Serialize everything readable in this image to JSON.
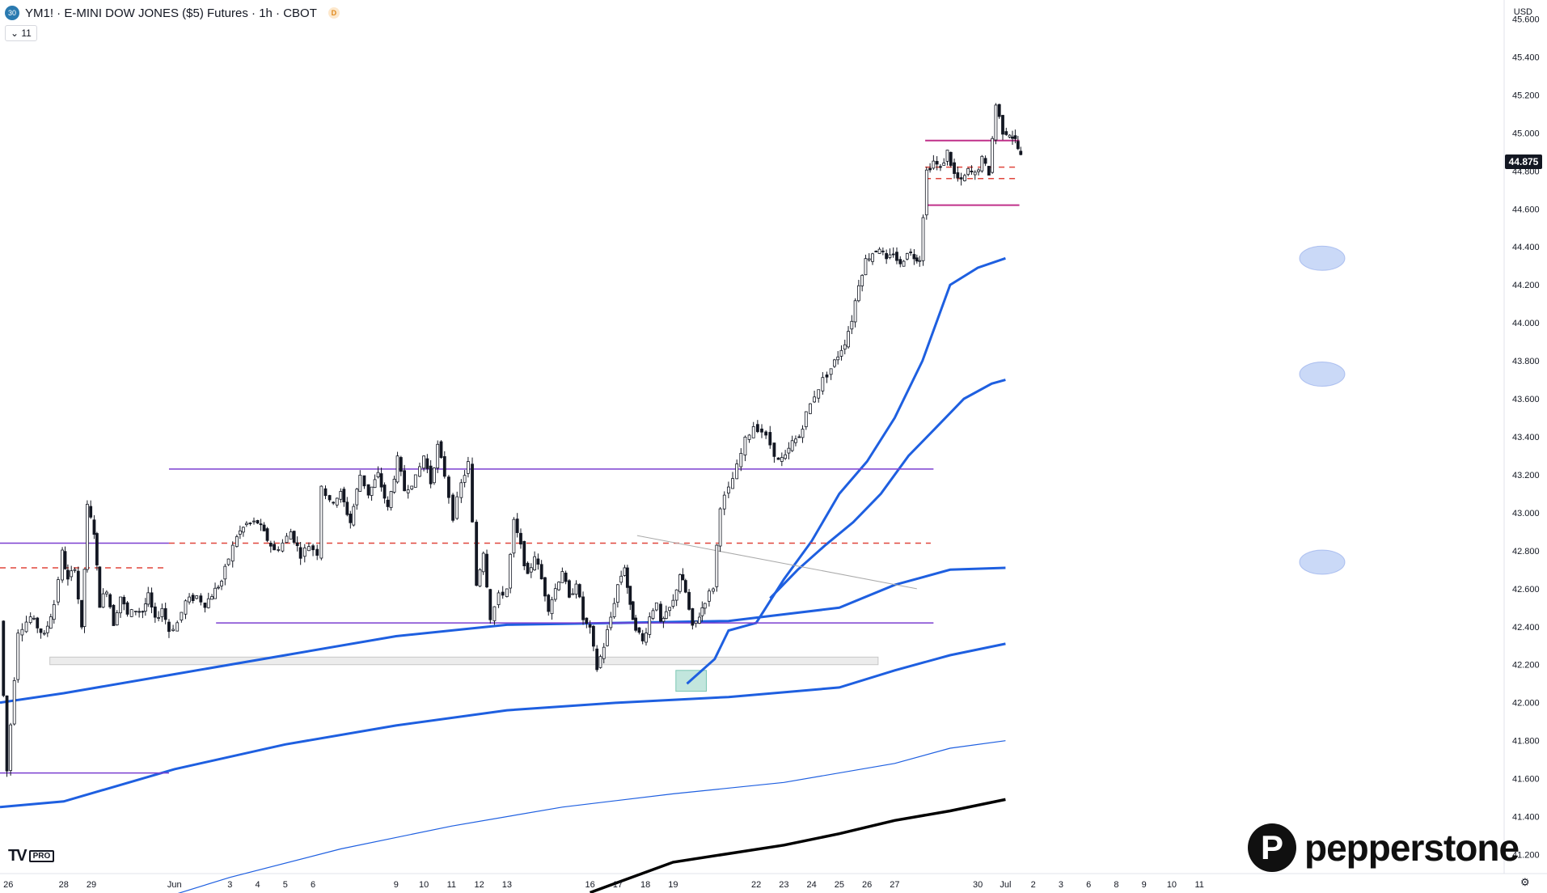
{
  "header": {
    "logo_text": "30",
    "title": "YM1! · E-MINI DOW JONES ($5) Futures · 1h · CBOT",
    "badge": "D",
    "indicator_toggle": "⌄ 11"
  },
  "currency": "USD",
  "last_price_label": "44.875",
  "branding": {
    "tv": "TV",
    "pro": "PRO",
    "broker": "pepperstone",
    "broker_mark": "P"
  },
  "settings_icon": "gear-icon",
  "colors": {
    "candle": "#131722",
    "band": "#1e5fe0",
    "resistance": "#7b3fd0",
    "dashed": "#e0463c",
    "top_range": "#c0308a",
    "sma": "#000000"
  },
  "chart_data": {
    "type": "candlestick",
    "symbol": "YM1!",
    "timeframe": "1h",
    "y_axis": {
      "min": 41100,
      "max": 45700,
      "ticks": [
        41200,
        41400,
        41600,
        41800,
        42000,
        42200,
        42400,
        42600,
        42800,
        43000,
        43200,
        43400,
        43600,
        43800,
        44000,
        44200,
        44400,
        44600,
        44800,
        45000,
        45200,
        45400,
        45600
      ],
      "tick_labels": [
        "41.200",
        "41.400",
        "41.600",
        "41.800",
        "42.000",
        "42.200",
        "42.400",
        "42.600",
        "42.800",
        "43.000",
        "43.200",
        "43.400",
        "43.600",
        "43.800",
        "44.000",
        "44.200",
        "44.400",
        "44.600",
        "44.800",
        "45.000",
        "45.200",
        "45.400",
        "45.600"
      ]
    },
    "x_axis": {
      "range": [
        25.7,
        80.0
      ],
      "ticks": [
        {
          "t": 26,
          "label": "26"
        },
        {
          "t": 28,
          "label": "28"
        },
        {
          "t": 29,
          "label": "29"
        },
        {
          "t": 32,
          "label": "Jun"
        },
        {
          "t": 34,
          "label": "3"
        },
        {
          "t": 35,
          "label": "4"
        },
        {
          "t": 36,
          "label": "5"
        },
        {
          "t": 37,
          "label": "6"
        },
        {
          "t": 40,
          "label": "9"
        },
        {
          "t": 41,
          "label": "10"
        },
        {
          "t": 42,
          "label": "11"
        },
        {
          "t": 43,
          "label": "12"
        },
        {
          "t": 44,
          "label": "13"
        },
        {
          "t": 47,
          "label": "16"
        },
        {
          "t": 48,
          "label": "17"
        },
        {
          "t": 49,
          "label": "18"
        },
        {
          "t": 50,
          "label": "19"
        },
        {
          "t": 53,
          "label": "22"
        },
        {
          "t": 54,
          "label": "23"
        },
        {
          "t": 55,
          "label": "24"
        },
        {
          "t": 56,
          "label": "25"
        },
        {
          "t": 57,
          "label": "26"
        },
        {
          "t": 58,
          "label": "27"
        },
        {
          "t": 61,
          "label": "30"
        },
        {
          "t": 62,
          "label": "Jul"
        },
        {
          "t": 63,
          "label": "2"
        },
        {
          "t": 64,
          "label": "3"
        },
        {
          "t": 65,
          "label": "6"
        },
        {
          "t": 66,
          "label": "8"
        },
        {
          "t": 67,
          "label": "9"
        },
        {
          "t": 68,
          "label": "10"
        },
        {
          "t": 69,
          "label": "11"
        }
      ]
    },
    "price_path": [
      [
        25.7,
        42430
      ],
      [
        25.95,
        41640
      ],
      [
        26.35,
        42380
      ],
      [
        26.8,
        42450
      ],
      [
        27.3,
        42350
      ],
      [
        27.65,
        42520
      ],
      [
        27.95,
        42790
      ],
      [
        28.15,
        42640
      ],
      [
        28.4,
        42720
      ],
      [
        28.65,
        42380
      ],
      [
        28.85,
        43030
      ],
      [
        29.1,
        42900
      ],
      [
        29.3,
        42520
      ],
      [
        29.55,
        42600
      ],
      [
        29.8,
        42420
      ],
      [
        30.05,
        42560
      ],
      [
        30.3,
        42460
      ],
      [
        30.6,
        42490
      ],
      [
        30.85,
        42480
      ],
      [
        31.05,
        42560
      ],
      [
        31.3,
        42430
      ],
      [
        31.55,
        42500
      ],
      [
        31.8,
        42380
      ],
      [
        32.1,
        42420
      ],
      [
        32.4,
        42530
      ],
      [
        32.8,
        42560
      ],
      [
        33.1,
        42520
      ],
      [
        33.35,
        42570
      ],
      [
        33.7,
        42640
      ],
      [
        33.95,
        42760
      ],
      [
        34.25,
        42880
      ],
      [
        34.6,
        42940
      ],
      [
        35.0,
        42950
      ],
      [
        35.35,
        42860
      ],
      [
        35.6,
        42800
      ],
      [
        35.9,
        42840
      ],
      [
        36.2,
        42900
      ],
      [
        36.55,
        42780
      ],
      [
        36.85,
        42830
      ],
      [
        37.15,
        42790
      ],
      [
        37.3,
        43150
      ],
      [
        37.6,
        43050
      ],
      [
        38.0,
        43100
      ],
      [
        38.35,
        42950
      ],
      [
        38.7,
        43200
      ],
      [
        39.0,
        43100
      ],
      [
        39.35,
        43200
      ],
      [
        39.7,
        43020
      ],
      [
        40.05,
        43280
      ],
      [
        40.3,
        43120
      ],
      [
        40.7,
        43180
      ],
      [
        41.0,
        43300
      ],
      [
        41.25,
        43160
      ],
      [
        41.5,
        43350
      ],
      [
        41.75,
        43200
      ],
      [
        42.05,
        42980
      ],
      [
        42.35,
        43150
      ],
      [
        42.6,
        43260
      ],
      [
        42.9,
        42620
      ],
      [
        43.15,
        42800
      ],
      [
        43.4,
        42450
      ],
      [
        43.7,
        42560
      ],
      [
        44.0,
        42600
      ],
      [
        44.25,
        42950
      ],
      [
        44.5,
        42820
      ],
      [
        44.75,
        42660
      ],
      [
        45.0,
        42780
      ],
      [
        45.25,
        42650
      ],
      [
        45.5,
        42500
      ],
      [
        45.75,
        42600
      ],
      [
        46.0,
        42700
      ],
      [
        46.25,
        42540
      ],
      [
        46.5,
        42640
      ],
      [
        46.75,
        42440
      ],
      [
        47.0,
        42380
      ],
      [
        47.25,
        42180
      ],
      [
        47.5,
        42300
      ],
      [
        47.75,
        42450
      ],
      [
        48.0,
        42620
      ],
      [
        48.25,
        42720
      ],
      [
        48.45,
        42500
      ],
      [
        48.65,
        42400
      ],
      [
        48.9,
        42320
      ],
      [
        49.15,
        42450
      ],
      [
        49.4,
        42540
      ],
      [
        49.55,
        42410
      ],
      [
        49.75,
        42460
      ],
      [
        50.0,
        42530
      ],
      [
        50.25,
        42680
      ],
      [
        50.45,
        42580
      ],
      [
        50.7,
        42390
      ],
      [
        50.95,
        42460
      ],
      [
        51.15,
        42540
      ],
      [
        51.45,
        42610
      ],
      [
        51.7,
        43040
      ],
      [
        52.0,
        43120
      ],
      [
        52.3,
        43240
      ],
      [
        52.6,
        43380
      ],
      [
        52.9,
        43460
      ],
      [
        53.2,
        43430
      ],
      [
        53.5,
        43360
      ],
      [
        53.8,
        43270
      ],
      [
        54.05,
        43290
      ],
      [
        54.3,
        43370
      ],
      [
        54.55,
        43400
      ],
      [
        54.8,
        43520
      ],
      [
        55.1,
        43620
      ],
      [
        55.4,
        43700
      ],
      [
        55.7,
        43760
      ],
      [
        55.95,
        43830
      ],
      [
        56.2,
        43900
      ],
      [
        56.45,
        44020
      ],
      [
        56.7,
        44210
      ],
      [
        56.95,
        44330
      ],
      [
        57.2,
        44370
      ],
      [
        57.45,
        44400
      ],
      [
        57.7,
        44320
      ],
      [
        57.95,
        44370
      ],
      [
        58.2,
        44300
      ],
      [
        58.45,
        44380
      ],
      [
        58.7,
        44350
      ],
      [
        58.9,
        44340
      ],
      [
        59.15,
        44800
      ],
      [
        59.4,
        44850
      ],
      [
        59.65,
        44810
      ],
      [
        59.9,
        44900
      ],
      [
        60.15,
        44780
      ],
      [
        60.4,
        44740
      ],
      [
        60.65,
        44800
      ],
      [
        60.9,
        44780
      ],
      [
        61.15,
        44860
      ],
      [
        61.4,
        44790
      ],
      [
        61.65,
        45150
      ],
      [
        61.9,
        45010
      ],
      [
        62.15,
        45000
      ],
      [
        62.35,
        44960
      ],
      [
        62.55,
        44875
      ]
    ],
    "moving_average_bands": [
      {
        "name": "",
        "points": [
          [
            25.7,
            42000
          ],
          [
            28,
            42050
          ],
          [
            32,
            42150
          ],
          [
            36,
            42250
          ],
          [
            40,
            42350
          ],
          [
            44,
            42410
          ],
          [
            48,
            42420
          ],
          [
            52,
            42430
          ],
          [
            56,
            42500
          ],
          [
            58,
            42620
          ],
          [
            60,
            42700
          ],
          [
            62,
            42710
          ]
        ]
      },
      {
        "name": "",
        "points": [
          [
            50.5,
            42100
          ],
          [
            51.5,
            42230
          ],
          [
            52,
            42380
          ],
          [
            53,
            42420
          ],
          [
            54,
            42650
          ],
          [
            55,
            42850
          ],
          [
            56,
            43100
          ],
          [
            57,
            43270
          ],
          [
            58,
            43500
          ],
          [
            59,
            43800
          ],
          [
            60,
            44200
          ],
          [
            61,
            44290
          ],
          [
            62,
            44340
          ]
        ]
      },
      {
        "name": "",
        "points": [
          [
            25.7,
            41450
          ],
          [
            28,
            41480
          ],
          [
            32,
            41650
          ],
          [
            36,
            41780
          ],
          [
            40,
            41880
          ],
          [
            44,
            41960
          ],
          [
            48,
            42000
          ],
          [
            52,
            42030
          ],
          [
            56,
            42080
          ],
          [
            58,
            42170
          ],
          [
            60,
            42250
          ],
          [
            62,
            42310
          ]
        ]
      },
      {
        "name": "",
        "points": [
          [
            53.5,
            42550
          ],
          [
            54.5,
            42700
          ],
          [
            55.5,
            42830
          ],
          [
            56.5,
            42950
          ],
          [
            57.5,
            43100
          ],
          [
            58.5,
            43300
          ],
          [
            59.5,
            43450
          ],
          [
            60.5,
            43600
          ],
          [
            61.5,
            43680
          ],
          [
            62,
            43700
          ]
        ]
      }
    ],
    "thin_band": {
      "points": [
        [
          30,
          40900
        ],
        [
          34,
          41080
        ],
        [
          38,
          41230
        ],
        [
          42,
          41350
        ],
        [
          46,
          41450
        ],
        [
          50,
          41520
        ],
        [
          54,
          41580
        ],
        [
          58,
          41680
        ],
        [
          60,
          41760
        ],
        [
          62,
          41800
        ]
      ]
    },
    "sma_black": {
      "points": [
        [
          47,
          41000
        ],
        [
          50,
          41160
        ],
        [
          54,
          41250
        ],
        [
          56,
          41310
        ],
        [
          58,
          41380
        ],
        [
          60,
          41430
        ],
        [
          62,
          41490
        ]
      ]
    },
    "horizontal_levels": [
      {
        "kind": "resistance",
        "price": 43230,
        "x_start": 31.8,
        "x_end": 59.4
      },
      {
        "kind": "resistance",
        "price": 42420,
        "x_start": 33.5,
        "x_end": 59.4
      },
      {
        "kind": "resistance",
        "price": 42840,
        "x_start": 25.7,
        "x_end": 31.8
      },
      {
        "kind": "resistance",
        "price": 41630,
        "x_start": 25.7,
        "x_end": 31.8
      },
      {
        "kind": "dashed",
        "price": 42840,
        "x_start": 31.8,
        "x_end": 59.3
      },
      {
        "kind": "dashed",
        "price": 42710,
        "x_start": 25.7,
        "x_end": 31.6
      },
      {
        "kind": "dashed",
        "price": 44820,
        "x_start": 59.1,
        "x_end": 62.5
      },
      {
        "kind": "dashed",
        "price": 44760,
        "x_start": 59.1,
        "x_end": 62.5
      },
      {
        "kind": "top_range",
        "price": 44960,
        "x_start": 59.1,
        "x_end": 62.5
      },
      {
        "kind": "top_range",
        "price": 44620,
        "x_start": 59.1,
        "x_end": 62.5
      }
    ],
    "zones": [
      {
        "kind": "support",
        "x_start": 27.5,
        "x_end": 57.4,
        "price_top": 42240,
        "price_bottom": 42200
      },
      {
        "kind": "entry",
        "x_start": 50.1,
        "x_end": 51.2,
        "price_top": 42170,
        "price_bottom": 42060
      }
    ],
    "trendline": {
      "from": [
        48.7,
        42880
      ],
      "to": [
        58.8,
        42600
      ]
    },
    "target_markers": [
      {
        "price": 44340
      },
      {
        "price": 43730
      },
      {
        "price": 42740
      }
    ]
  }
}
